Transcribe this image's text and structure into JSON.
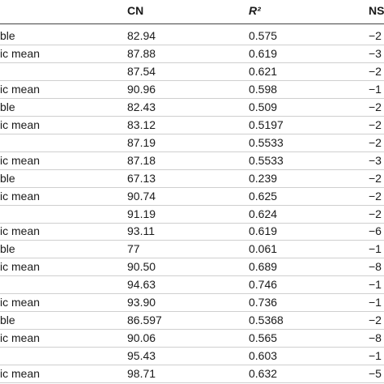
{
  "table": {
    "header": [
      "CN",
      "R²",
      "NS"
    ],
    "rows": [
      [
        "ble",
        "82.94",
        "0.575",
        "−2"
      ],
      [
        "ic mean",
        "87.88",
        "0.619",
        "−3"
      ],
      [
        null,
        "87.54",
        "0.621",
        "−2"
      ],
      [
        "ic mean",
        "90.96",
        "0.598",
        "−1"
      ],
      [
        "ble",
        "82.43",
        "0.509",
        "−2"
      ],
      [
        "ic mean",
        "83.12",
        "0.5197",
        "−2"
      ],
      [
        null,
        "87.19",
        "0.5533",
        "−2"
      ],
      [
        "ic mean",
        "87.18",
        "0.5533",
        "−3"
      ],
      [
        "ble",
        "67.13",
        "0.239",
        "−2"
      ],
      [
        "ic mean",
        "90.74",
        "0.625",
        "−2"
      ],
      [
        null,
        "91.19",
        "0.624",
        "−2"
      ],
      [
        "ic mean",
        "93.11",
        "0.619",
        "−6"
      ],
      [
        "ble",
        "77",
        "0.061",
        "−1"
      ],
      [
        "ic mean",
        "90.50",
        "0.689",
        "−8"
      ],
      [
        null,
        "94.63",
        "0.746",
        "−1"
      ],
      [
        "ic mean",
        "93.90",
        "0.736",
        "−1"
      ],
      [
        "ble",
        "86.597",
        "0.5368",
        "−2"
      ],
      [
        "ic mean",
        "90.06",
        "0.565",
        "−8"
      ],
      [
        null,
        "95.43",
        "0.603",
        "−1"
      ],
      [
        "ic mean",
        "98.71",
        "0.632",
        "−5"
      ]
    ]
  }
}
